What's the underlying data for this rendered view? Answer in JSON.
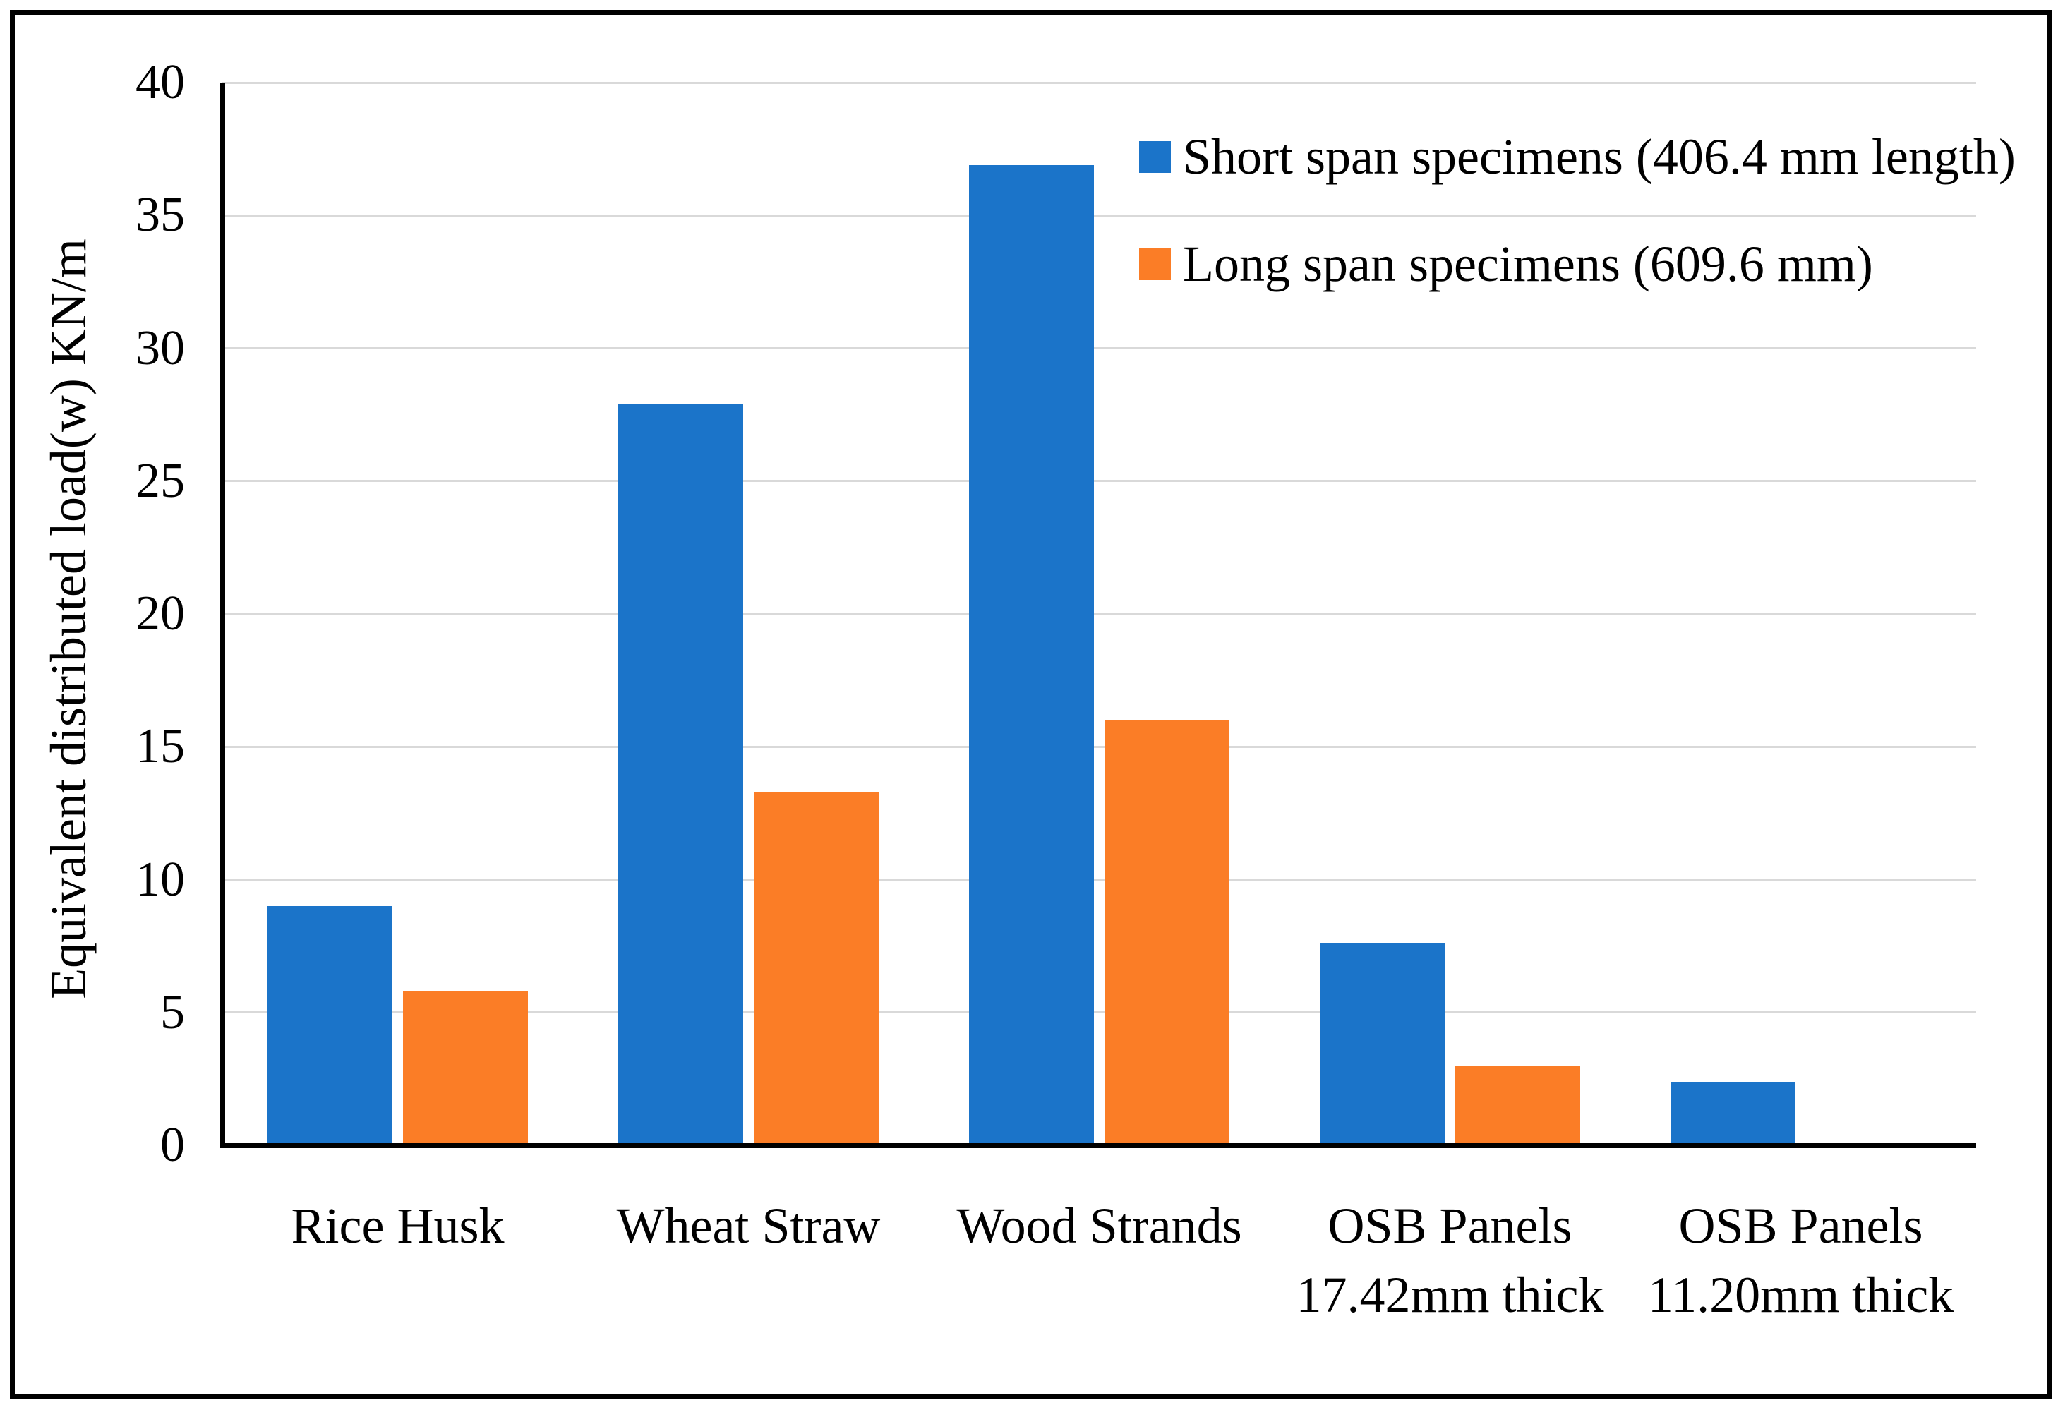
{
  "figure": {
    "background_color": "#ffffff",
    "border_color": "#000000"
  },
  "chart_data": {
    "type": "bar",
    "title": "",
    "xlabel": "",
    "ylabel": "Equivalent distributed load(w) KN/m",
    "categories": [
      [
        "Rice Husk"
      ],
      [
        "Wheat Straw"
      ],
      [
        "Wood Strands"
      ],
      [
        "OSB Panels",
        "17.42mm thick"
      ],
      [
        "OSB Panels",
        "11.20mm thick"
      ]
    ],
    "series": [
      {
        "name": "Short span specimens (406.4 mm length)",
        "color": "#1b74c9",
        "values": [
          9.0,
          27.9,
          36.9,
          7.6,
          2.4
        ]
      },
      {
        "name": "Long span specimens (609.6 mm)",
        "color": "#fb7d26",
        "values": [
          5.8,
          13.3,
          16.0,
          3.0,
          null
        ]
      }
    ],
    "ylim": [
      0,
      40
    ],
    "yticks": [
      0,
      5,
      10,
      15,
      20,
      25,
      30,
      35,
      40
    ],
    "grid": "horizontal",
    "gridline_color": "#d9d9d9",
    "axis_color": "#000000",
    "legend_position": "top-right"
  }
}
